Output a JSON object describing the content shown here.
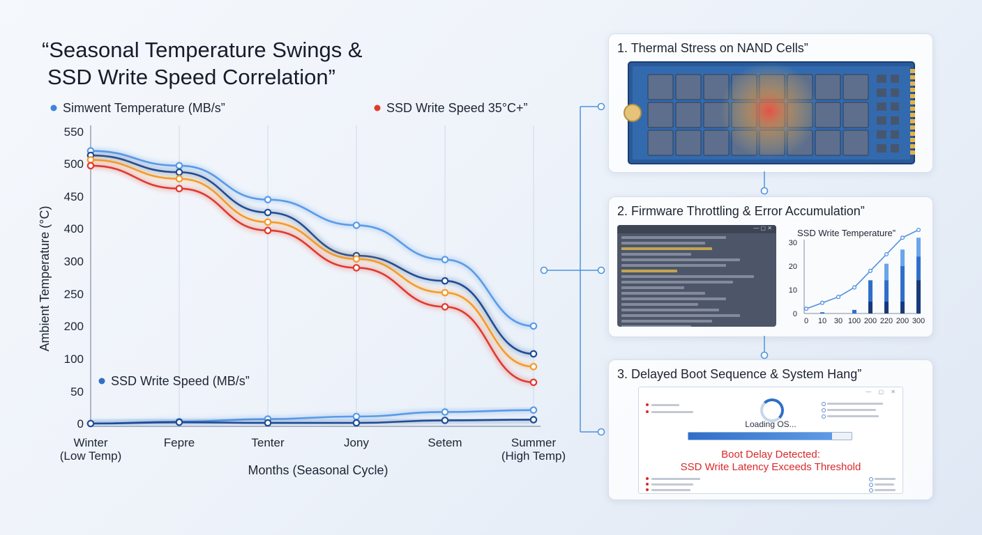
{
  "title": {
    "line1": "“Seasonal Temperature Swings &",
    "line2": "SSD Write Speed Correlation”"
  },
  "colors": {
    "light_blue": "#5a9be8",
    "dark_blue": "#1f4c94",
    "orange": "#f59a2c",
    "red": "#e03a2e",
    "connector": "#4b94de"
  },
  "chart_data": {
    "type": "line",
    "categories": [
      "Winter\n(Low Temp)",
      "Fepre",
      "Tenter",
      "Jony",
      "Setem",
      "Summer\n(High Temp)"
    ],
    "ylabel": "Ambient Temperature (°C)",
    "xlabel": "Months (Seasonal Cycle)",
    "yticks": [
      0,
      50,
      100,
      200,
      250,
      300,
      400,
      450,
      500,
      550
    ],
    "legend": [
      {
        "text": "Simwent Temperature (MB/s”",
        "color": "#3f84d9",
        "position": "top-left"
      },
      {
        "text": "SSD Write Speed 35°C+”",
        "color": "#e03a2e",
        "position": "top-right"
      },
      {
        "text": "SSD Write Speed (MB/s”",
        "color": "#2f6fc9",
        "position": "bottom-left"
      }
    ],
    "series": [
      {
        "color": "#5a9be8",
        "x": [
          0,
          1,
          2,
          3,
          4,
          5
        ],
        "y": [
          520,
          497,
          445,
          405,
          305,
          200
        ]
      },
      {
        "color": "#1f4c94",
        "x": [
          0,
          1,
          2,
          3,
          4,
          5
        ],
        "y": [
          513,
          487,
          425,
          317,
          270,
          115
        ]
      },
      {
        "color": "#f59a2c",
        "x": [
          0,
          1,
          2,
          3,
          4,
          5
        ],
        "y": [
          506,
          477,
          410,
          307,
          252,
          88
        ]
      },
      {
        "color": "#e03a2e",
        "x": [
          0,
          1,
          2,
          3,
          4,
          5
        ],
        "y": [
          497,
          462,
          394,
          290,
          230,
          64
        ]
      },
      {
        "color": "#5a9be8",
        "x": [
          0,
          1,
          2,
          3,
          4,
          5
        ],
        "y": [
          0,
          3,
          7,
          11,
          18,
          21
        ]
      },
      {
        "color": "#1f4c94",
        "x": [
          0,
          1,
          2,
          3,
          4,
          5
        ],
        "y": [
          0,
          2,
          1,
          1,
          5,
          6
        ]
      }
    ]
  },
  "panels": [
    {
      "title": "1. Thermal Stress on NAND Cells”"
    },
    {
      "title": "2. Firmware Throttling & Error Accumulation”",
      "mini_chart": {
        "type": "bar",
        "title": "SSD Write Temperature”",
        "xticks": [
          "0",
          "10",
          "30",
          "100",
          "200",
          "220",
          "200",
          "300"
        ],
        "yticks": [
          0,
          10,
          20,
          30
        ],
        "ylim": [
          0,
          30
        ],
        "line_values": [
          2,
          4.5,
          7,
          11,
          18,
          25,
          32,
          37
        ],
        "bars_light": [
          0,
          0.5,
          0,
          1.5,
          14,
          21,
          27,
          32
        ],
        "bars_mid": [
          0,
          0.5,
          0,
          1.5,
          14,
          14,
          20,
          24
        ],
        "bars_dark": [
          0,
          0,
          0,
          0,
          5,
          5,
          5,
          14
        ]
      }
    },
    {
      "title": "3. Delayed Boot Sequence & System Hang”",
      "loading_text": "Loading OS...",
      "progress": 0.88,
      "warning_line1": "Boot Delay Detected:",
      "warning_line2": "SSD Write Latency Exceeds Threshold"
    }
  ]
}
